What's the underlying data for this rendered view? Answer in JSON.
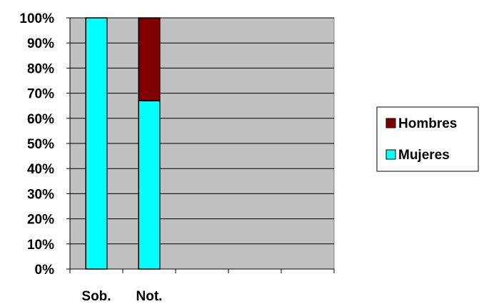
{
  "chart_data": {
    "type": "bar",
    "stacked": true,
    "normalized": true,
    "title": "",
    "xlabel": "",
    "ylabel": "",
    "categories": [
      "Sob.",
      "Not.",
      "",
      "",
      ""
    ],
    "series": [
      {
        "name": "Mujeres",
        "values": [
          100,
          67,
          null,
          null,
          null
        ],
        "color": "#00ffff"
      },
      {
        "name": "Hombres",
        "values": [
          0,
          33,
          null,
          null,
          null
        ],
        "color": "#800000"
      }
    ],
    "ylim": [
      0,
      100
    ],
    "y_ticks": [
      "0%",
      "10%",
      "20%",
      "30%",
      "40%",
      "50%",
      "60%",
      "70%",
      "80%",
      "90%",
      "100%"
    ],
    "grid": true,
    "legend": {
      "position": "right",
      "order": [
        "Hombres",
        "Mujeres"
      ]
    },
    "plot_background": "#c0c0c0"
  }
}
